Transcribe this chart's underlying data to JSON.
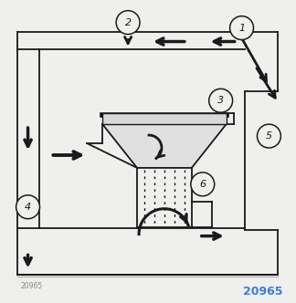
{
  "bg_color": "#efefed",
  "line_color": "#1a1a1a",
  "white_color": "#ffffff",
  "watermark_color": "#3a7fd5",
  "watermark_text": "20965",
  "small_watermark": "20965",
  "numbered_labels": [
    "1",
    "2",
    "3",
    "4",
    "5",
    "6"
  ],
  "fig_w": 3.24,
  "fig_h": 3.32,
  "dpi": 100
}
